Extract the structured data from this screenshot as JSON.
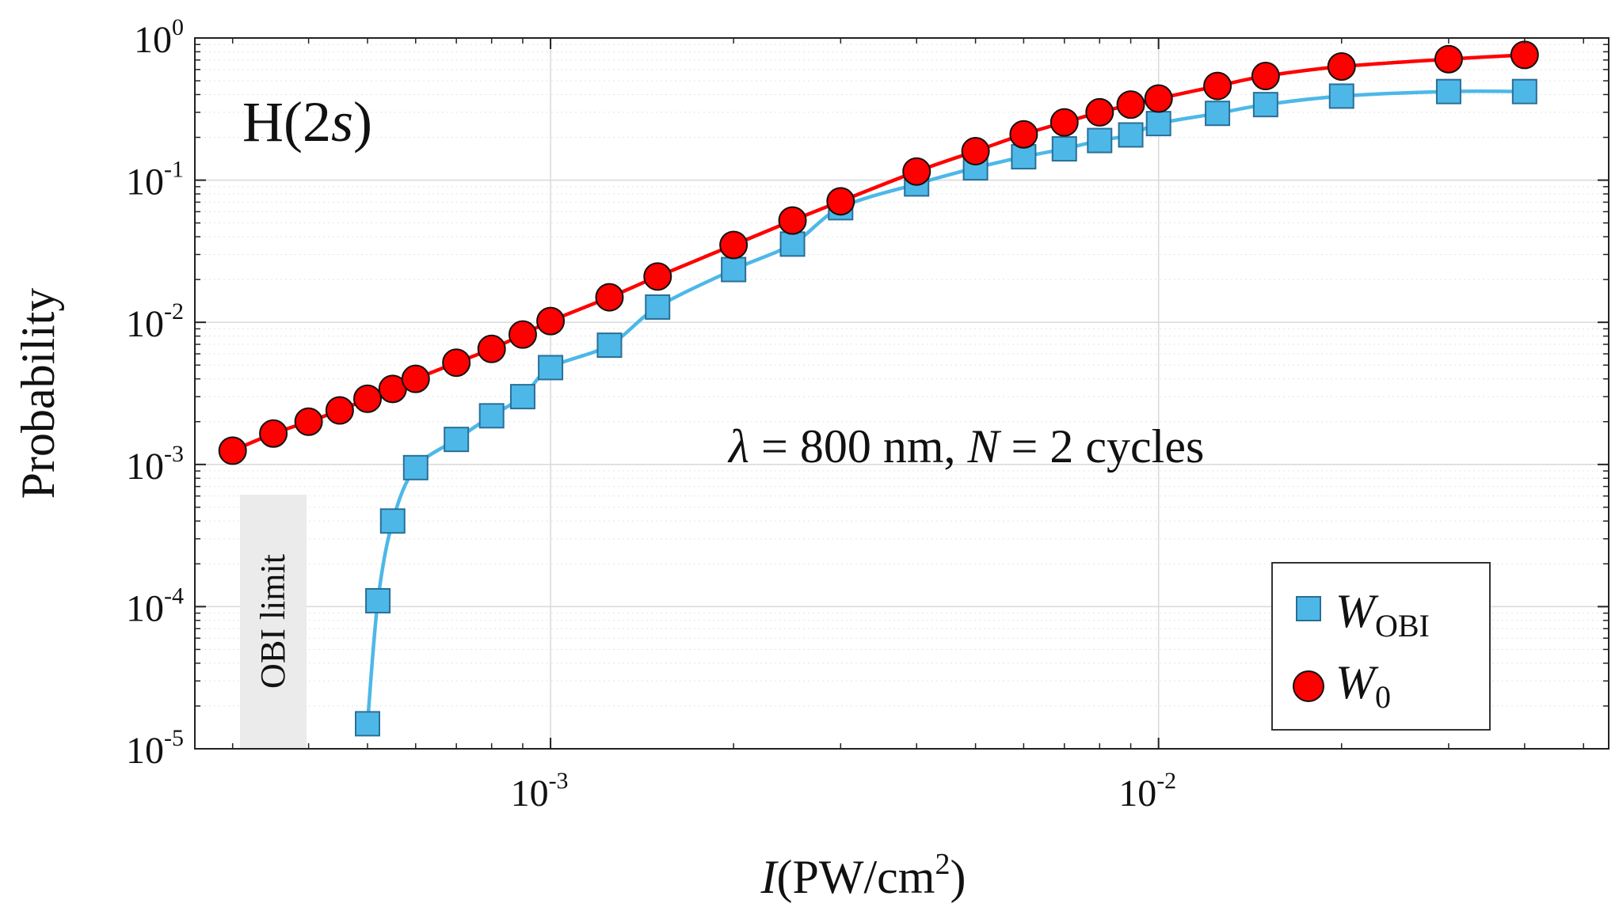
{
  "chart_data": {
    "type": "line",
    "xscale": "log",
    "yscale": "log",
    "xlim": [
      0.00026,
      0.055
    ],
    "ylim": [
      1e-05,
      1
    ],
    "grid": true,
    "xlabel": {
      "var": "I",
      "unit": "(PW/cm",
      "unit_exp": "2",
      "unit_close": ")"
    },
    "ylabel": "Probability",
    "x_ticks": [
      {
        "value": 0.001,
        "base": "10",
        "exp": "-3"
      },
      {
        "value": 0.01,
        "base": "10",
        "exp": "-2"
      }
    ],
    "y_ticks": [
      {
        "value": 1e-05,
        "base": "10",
        "exp": "-5"
      },
      {
        "value": 0.0001,
        "base": "10",
        "exp": "-4"
      },
      {
        "value": 0.001,
        "base": "10",
        "exp": "-3"
      },
      {
        "value": 0.01,
        "base": "10",
        "exp": "-2"
      },
      {
        "value": 0.1,
        "base": "10",
        "exp": "-1"
      },
      {
        "value": 1,
        "base": "10",
        "exp": "0"
      }
    ],
    "annotations": {
      "state": {
        "prefix": "H(2",
        "var": "s",
        "suffix": ")"
      },
      "params": {
        "lambda_sym": "λ",
        "lambda_val": " = 800 nm, ",
        "n_sym": "N",
        "n_val": " = 2 cycles"
      },
      "obi_label": "OBI limit",
      "obi_x": 0.00035
    },
    "series": [
      {
        "name": "W0",
        "symbol": "W",
        "subscript": "0",
        "color": "#ff0000",
        "marker": "circle",
        "x": [
          0.0003,
          0.00035,
          0.0004,
          0.00045,
          0.0005,
          0.00055,
          0.0006,
          0.0007,
          0.0008,
          0.0009,
          0.001,
          0.00125,
          0.0015,
          0.002,
          0.0025,
          0.003,
          0.004,
          0.005,
          0.006,
          0.007,
          0.008,
          0.009,
          0.01,
          0.0125,
          0.015,
          0.02,
          0.03,
          0.04
        ],
        "y": [
          0.00125,
          0.00165,
          0.002,
          0.0024,
          0.0029,
          0.0034,
          0.004,
          0.0052,
          0.0065,
          0.0082,
          0.0102,
          0.015,
          0.021,
          0.035,
          0.052,
          0.071,
          0.115,
          0.16,
          0.21,
          0.255,
          0.3,
          0.34,
          0.375,
          0.46,
          0.54,
          0.63,
          0.71,
          0.76
        ]
      },
      {
        "name": "W_OBI",
        "symbol": "W",
        "subscript": "OBI",
        "color": "#4db8e8",
        "marker": "square",
        "x": [
          0.0005,
          0.00052,
          0.00055,
          0.0006,
          0.0007,
          0.0008,
          0.0009,
          0.001,
          0.00125,
          0.0015,
          0.002,
          0.0025,
          0.003,
          0.004,
          0.005,
          0.006,
          0.007,
          0.008,
          0.009,
          0.01,
          0.0125,
          0.015,
          0.02,
          0.03,
          0.04
        ],
        "y": [
          1.5e-05,
          0.00011,
          0.0004,
          0.00095,
          0.0015,
          0.0022,
          0.003,
          0.0048,
          0.0069,
          0.0128,
          0.0235,
          0.0355,
          0.064,
          0.094,
          0.122,
          0.146,
          0.166,
          0.19,
          0.208,
          0.25,
          0.295,
          0.34,
          0.39,
          0.42,
          0.42
        ]
      }
    ]
  }
}
